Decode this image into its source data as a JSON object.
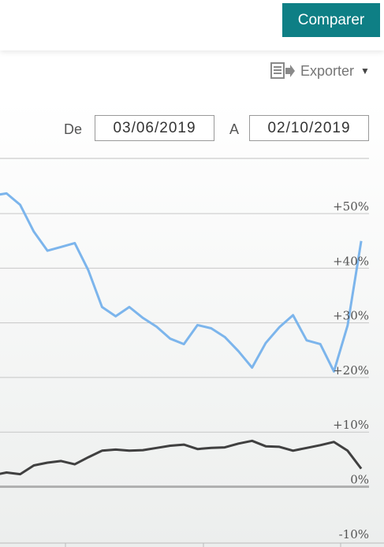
{
  "header": {
    "compare_label": "Comparer"
  },
  "toolbar": {
    "export_label": "Exporter",
    "export_icon": "export-document-icon",
    "caret_icon": "caret-down-icon"
  },
  "date_range": {
    "from_label": "De",
    "from_value": "03/06/2019",
    "to_label": "A",
    "to_value": "02/10/2019"
  },
  "colors": {
    "accent": "#0e7f85",
    "series_blue": "#7cb5ec",
    "series_dark": "#404040"
  },
  "chart_data": {
    "type": "line",
    "title": "",
    "xlabel": "",
    "ylabel": "",
    "ylim": [
      -10,
      55
    ],
    "yticks": [
      {
        "value": 50,
        "label": "+50%"
      },
      {
        "value": 40,
        "label": "+40%"
      },
      {
        "value": 30,
        "label": "+30%"
      },
      {
        "value": 20,
        "label": "+20%"
      },
      {
        "value": 10,
        "label": "+10%"
      },
      {
        "value": 0,
        "label": "0%"
      },
      {
        "value": -10,
        "label": "-10%"
      }
    ],
    "grid": true,
    "series": [
      {
        "values": [
          53.3,
          53.7,
          51.6,
          46.7,
          43.2,
          43.9,
          44.6,
          39.6,
          32.9,
          31.2,
          32.9,
          30.9,
          29.3,
          27.1,
          26.1,
          29.6,
          29.0,
          27.4,
          24.8,
          21.8,
          26.3,
          29.2,
          31.4,
          26.8,
          26.1,
          21.1,
          29.5,
          45.0
        ]
      },
      {
        "values": [
          2.1,
          2.6,
          2.3,
          3.9,
          4.4,
          4.7,
          4.1,
          5.4,
          6.6,
          6.8,
          6.6,
          6.7,
          7.1,
          7.5,
          7.7,
          6.9,
          7.1,
          7.2,
          7.9,
          8.4,
          7.4,
          7.3,
          6.6,
          7.1,
          7.6,
          8.2,
          6.6,
          3.3
        ]
      }
    ]
  }
}
